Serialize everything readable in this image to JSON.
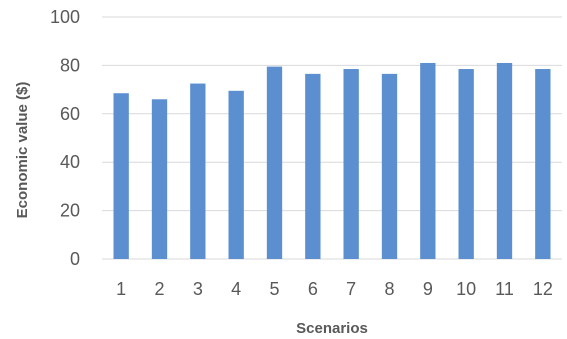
{
  "chart_data": {
    "type": "bar",
    "title": "",
    "xlabel": "Scenarios",
    "ylabel": "Economic value ($)",
    "categories": [
      "1",
      "2",
      "3",
      "4",
      "5",
      "6",
      "7",
      "8",
      "9",
      "10",
      "11",
      "12"
    ],
    "values": [
      68.5,
      66,
      72.5,
      69.5,
      79.5,
      76.5,
      78.5,
      76.5,
      81,
      78.5,
      81,
      78.5
    ],
    "ylim": [
      0,
      100
    ],
    "yticks": [
      0,
      20,
      40,
      60,
      80,
      100
    ],
    "grid": true,
    "legend": "none",
    "bar_color": "#5b8fd0"
  }
}
